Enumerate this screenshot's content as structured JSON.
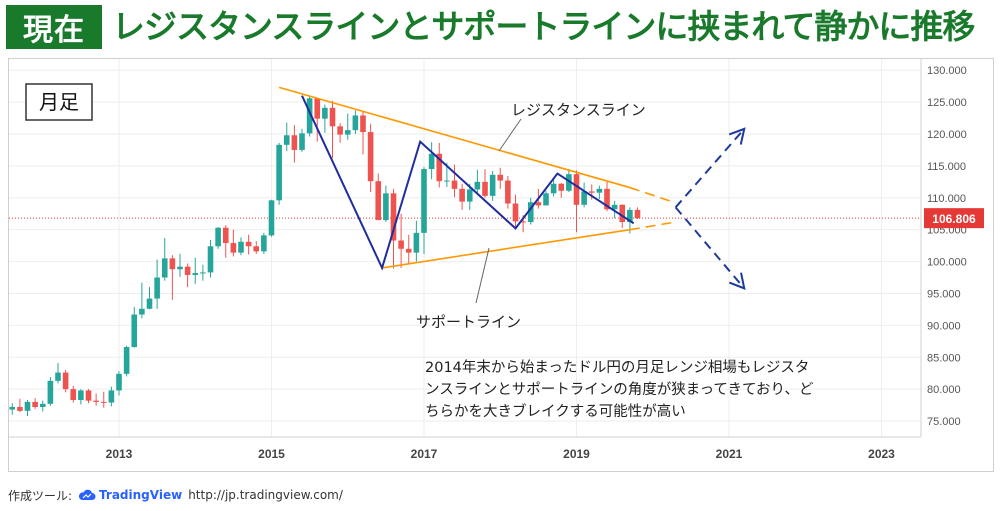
{
  "header": {
    "badge": "現在",
    "headline": "レジスタンスラインとサポートラインに挟まれて静かに推移"
  },
  "footer": {
    "tool_label": "作成ツール:",
    "tv_name": "TradingView",
    "url": "http://jp.tradingview.com/"
  },
  "colors": {
    "header_green": "#1a7a2c",
    "up_candle": "#26a69a",
    "down_candle": "#ef5350",
    "trend_line": "#ff9800",
    "zigzag": "#1f2d9e",
    "arrow": "#1e3a9a",
    "current_price": "#e53935"
  },
  "chart_data": {
    "type": "candlestick",
    "timeframe_label": "月足",
    "x_ticks": [
      "2013",
      "2015",
      "2017",
      "2019",
      "2021",
      "2023"
    ],
    "y_ticks": [
      "75.000",
      "80.000",
      "85.000",
      "90.000",
      "95.000",
      "100.000",
      "105.000",
      "110.000",
      "115.000",
      "120.000",
      "125.000",
      "130.000"
    ],
    "ylim": [
      72.5,
      130.5
    ],
    "current_price": "106.806",
    "annotations": {
      "resistance": "レジスタンスライン",
      "support": "サポートライン",
      "comment_lines": [
        "2014年末から始まったドル円の月足レンジ相場もレジスタ",
        "ンスラインとサポートラインの角度が狭まってきており、ど",
        "ちらかを大きブレイクする可能性が高い"
      ]
    },
    "resistance_line": [
      {
        "t": 2015.1,
        "v": 127.3
      },
      {
        "t": 2019.7,
        "v": 111.6
      }
    ],
    "resistance_projection": [
      {
        "t": 2019.7,
        "v": 111.6
      },
      {
        "t": 2020.3,
        "v": 109.2
      }
    ],
    "support_line": [
      {
        "t": 2016.45,
        "v": 99.0
      },
      {
        "t": 2019.7,
        "v": 105.0
      }
    ],
    "support_projection": [
      {
        "t": 2019.7,
        "v": 105.0
      },
      {
        "t": 2020.3,
        "v": 106.2
      }
    ],
    "zigzag": [
      {
        "t": 2015.4,
        "v": 126.0
      },
      {
        "t": 2016.45,
        "v": 99.0
      },
      {
        "t": 2016.95,
        "v": 118.8
      },
      {
        "t": 2018.2,
        "v": 105.2
      },
      {
        "t": 2018.75,
        "v": 113.8
      },
      {
        "t": 2019.75,
        "v": 106.0
      }
    ],
    "arrows": [
      {
        "from": {
          "t": 2020.3,
          "v": 108.5
        },
        "to": {
          "t": 2021.2,
          "v": 120.8
        }
      },
      {
        "from": {
          "t": 2020.3,
          "v": 108.5
        },
        "to": {
          "t": 2021.2,
          "v": 95.8
        }
      }
    ],
    "candles": [
      {
        "t": 2011.6,
        "o": 76.8,
        "h": 77.8,
        "l": 76.0,
        "c": 77.2
      },
      {
        "t": 2011.7,
        "o": 77.2,
        "h": 78.5,
        "l": 76.4,
        "c": 76.6
      },
      {
        "t": 2011.8,
        "o": 76.6,
        "h": 78.3,
        "l": 75.8,
        "c": 78.0
      },
      {
        "t": 2011.9,
        "o": 78.0,
        "h": 78.6,
        "l": 76.9,
        "c": 77.2
      },
      {
        "t": 2012.0,
        "o": 77.2,
        "h": 78.2,
        "l": 76.5,
        "c": 77.7
      },
      {
        "t": 2012.1,
        "o": 77.7,
        "h": 81.9,
        "l": 77.4,
        "c": 81.3
      },
      {
        "t": 2012.2,
        "o": 81.3,
        "h": 84.1,
        "l": 80.9,
        "c": 82.6
      },
      {
        "t": 2012.3,
        "o": 82.6,
        "h": 83.0,
        "l": 79.5,
        "c": 80.0
      },
      {
        "t": 2012.4,
        "o": 80.0,
        "h": 80.5,
        "l": 77.9,
        "c": 78.3
      },
      {
        "t": 2012.5,
        "o": 78.3,
        "h": 80.0,
        "l": 77.6,
        "c": 79.8
      },
      {
        "t": 2012.6,
        "o": 79.8,
        "h": 80.0,
        "l": 77.8,
        "c": 78.2
      },
      {
        "t": 2012.7,
        "o": 78.2,
        "h": 79.3,
        "l": 77.4,
        "c": 78.0
      },
      {
        "t": 2012.8,
        "o": 78.0,
        "h": 79.6,
        "l": 77.1,
        "c": 77.9
      },
      {
        "t": 2012.9,
        "o": 77.9,
        "h": 80.4,
        "l": 77.3,
        "c": 79.8
      },
      {
        "t": 2013.0,
        "o": 79.8,
        "h": 82.8,
        "l": 79.0,
        "c": 82.4
      },
      {
        "t": 2013.1,
        "o": 82.4,
        "h": 86.8,
        "l": 82.0,
        "c": 86.6
      },
      {
        "t": 2013.2,
        "o": 86.6,
        "h": 92.9,
        "l": 86.5,
        "c": 91.7
      },
      {
        "t": 2013.3,
        "o": 91.7,
        "h": 96.7,
        "l": 91.1,
        "c": 92.6
      },
      {
        "t": 2013.4,
        "o": 92.6,
        "h": 96.0,
        "l": 92.5,
        "c": 94.2
      },
      {
        "t": 2013.5,
        "o": 94.2,
        "h": 100.3,
        "l": 92.6,
        "c": 97.5
      },
      {
        "t": 2013.6,
        "o": 97.5,
        "h": 103.7,
        "l": 97.0,
        "c": 100.5
      },
      {
        "t": 2013.7,
        "o": 100.5,
        "h": 101.0,
        "l": 94.0,
        "c": 98.8
      },
      {
        "t": 2013.8,
        "o": 98.8,
        "h": 101.2,
        "l": 97.6,
        "c": 99.2
      },
      {
        "t": 2013.9,
        "o": 99.2,
        "h": 99.7,
        "l": 96.0,
        "c": 97.9
      },
      {
        "t": 2014.0,
        "o": 97.9,
        "h": 100.6,
        "l": 96.5,
        "c": 98.2
      },
      {
        "t": 2014.1,
        "o": 98.2,
        "h": 99.5,
        "l": 97.0,
        "c": 98.3
      },
      {
        "t": 2014.2,
        "o": 98.3,
        "h": 103.4,
        "l": 97.5,
        "c": 102.4
      },
      {
        "t": 2014.3,
        "o": 102.4,
        "h": 105.4,
        "l": 102.0,
        "c": 105.3
      },
      {
        "t": 2014.4,
        "o": 105.3,
        "h": 105.7,
        "l": 100.6,
        "c": 102.9
      },
      {
        "t": 2014.5,
        "o": 102.9,
        "h": 105.0,
        "l": 100.8,
        "c": 101.4
      },
      {
        "t": 2014.6,
        "o": 101.4,
        "h": 103.8,
        "l": 101.0,
        "c": 103.1
      },
      {
        "t": 2014.7,
        "o": 103.1,
        "h": 104.2,
        "l": 101.1,
        "c": 102.4
      },
      {
        "t": 2014.8,
        "o": 102.4,
        "h": 103.2,
        "l": 101.2,
        "c": 101.6
      },
      {
        "t": 2014.9,
        "o": 101.6,
        "h": 104.5,
        "l": 101.2,
        "c": 104.1
      },
      {
        "t": 2015.0,
        "o": 104.1,
        "h": 109.7,
        "l": 103.9,
        "c": 109.6
      },
      {
        "t": 2015.1,
        "o": 109.6,
        "h": 118.6,
        "l": 108.9,
        "c": 118.3
      },
      {
        "t": 2015.2,
        "o": 118.3,
        "h": 121.8,
        "l": 117.3,
        "c": 119.8
      },
      {
        "t": 2015.3,
        "o": 119.8,
        "h": 121.4,
        "l": 115.5,
        "c": 117.5
      },
      {
        "t": 2015.4,
        "o": 117.5,
        "h": 120.8,
        "l": 117.2,
        "c": 120.1
      },
      {
        "t": 2015.5,
        "o": 120.1,
        "h": 125.9,
        "l": 119.6,
        "c": 125.6
      },
      {
        "t": 2015.6,
        "o": 125.6,
        "h": 125.7,
        "l": 118.8,
        "c": 122.4
      },
      {
        "t": 2015.7,
        "o": 122.4,
        "h": 124.6,
        "l": 120.2,
        "c": 124.1
      },
      {
        "t": 2015.8,
        "o": 124.1,
        "h": 125.2,
        "l": 116.2,
        "c": 121.2
      },
      {
        "t": 2015.9,
        "o": 121.2,
        "h": 121.7,
        "l": 118.6,
        "c": 119.9
      },
      {
        "t": 2016.0,
        "o": 119.9,
        "h": 123.2,
        "l": 119.1,
        "c": 120.6
      },
      {
        "t": 2016.1,
        "o": 120.6,
        "h": 123.7,
        "l": 120.0,
        "c": 122.9
      },
      {
        "t": 2016.2,
        "o": 122.9,
        "h": 123.5,
        "l": 116.8,
        "c": 120.3
      },
      {
        "t": 2016.3,
        "o": 120.3,
        "h": 121.6,
        "l": 110.9,
        "c": 112.6
      },
      {
        "t": 2016.4,
        "o": 112.6,
        "h": 113.8,
        "l": 106.7,
        "c": 106.5
      },
      {
        "t": 2016.5,
        "o": 106.5,
        "h": 111.9,
        "l": 106.2,
        "c": 110.7
      },
      {
        "t": 2016.6,
        "o": 110.7,
        "h": 111.4,
        "l": 98.9,
        "c": 103.3
      },
      {
        "t": 2016.7,
        "o": 103.3,
        "h": 107.5,
        "l": 99.0,
        "c": 102.0
      },
      {
        "t": 2016.8,
        "o": 102.0,
        "h": 104.2,
        "l": 99.6,
        "c": 101.4
      },
      {
        "t": 2016.9,
        "o": 101.4,
        "h": 106.4,
        "l": 100.0,
        "c": 104.5
      },
      {
        "t": 2017.0,
        "o": 104.5,
        "h": 114.8,
        "l": 101.2,
        "c": 114.5
      },
      {
        "t": 2017.1,
        "o": 114.5,
        "h": 118.7,
        "l": 112.9,
        "c": 116.9
      },
      {
        "t": 2017.2,
        "o": 116.9,
        "h": 118.6,
        "l": 111.6,
        "c": 112.6
      },
      {
        "t": 2017.3,
        "o": 112.6,
        "h": 115.5,
        "l": 111.7,
        "c": 112.7
      },
      {
        "t": 2017.4,
        "o": 112.7,
        "h": 115.2,
        "l": 110.1,
        "c": 111.4
      },
      {
        "t": 2017.5,
        "o": 111.4,
        "h": 112.2,
        "l": 108.1,
        "c": 109.4
      },
      {
        "t": 2017.6,
        "o": 109.4,
        "h": 112.2,
        "l": 108.1,
        "c": 111.3
      },
      {
        "t": 2017.7,
        "o": 111.3,
        "h": 114.4,
        "l": 110.6,
        "c": 112.5
      },
      {
        "t": 2017.8,
        "o": 112.5,
        "h": 114.5,
        "l": 110.0,
        "c": 110.3
      },
      {
        "t": 2017.9,
        "o": 110.3,
        "h": 114.2,
        "l": 109.5,
        "c": 113.6
      },
      {
        "t": 2018.0,
        "o": 113.6,
        "h": 114.7,
        "l": 111.4,
        "c": 112.7
      },
      {
        "t": 2018.1,
        "o": 112.7,
        "h": 113.4,
        "l": 108.3,
        "c": 109.1
      },
      {
        "t": 2018.2,
        "o": 109.1,
        "h": 110.5,
        "l": 105.5,
        "c": 106.3
      },
      {
        "t": 2018.3,
        "o": 106.3,
        "h": 107.3,
        "l": 104.6,
        "c": 106.2
      },
      {
        "t": 2018.4,
        "o": 106.2,
        "h": 110.0,
        "l": 105.8,
        "c": 109.3
      },
      {
        "t": 2018.5,
        "o": 109.3,
        "h": 111.4,
        "l": 108.3,
        "c": 108.8
      },
      {
        "t": 2018.6,
        "o": 108.8,
        "h": 111.1,
        "l": 108.9,
        "c": 110.7
      },
      {
        "t": 2018.7,
        "o": 110.7,
        "h": 113.2,
        "l": 110.2,
        "c": 112.2
      },
      {
        "t": 2018.8,
        "o": 112.2,
        "h": 112.3,
        "l": 110.0,
        "c": 111.1
      },
      {
        "t": 2018.9,
        "o": 111.1,
        "h": 114.5,
        "l": 110.9,
        "c": 113.7
      },
      {
        "t": 2019.0,
        "o": 113.7,
        "h": 114.3,
        "l": 104.6,
        "c": 108.9
      },
      {
        "t": 2019.1,
        "o": 108.9,
        "h": 112.4,
        "l": 108.5,
        "c": 111.0
      },
      {
        "t": 2019.2,
        "o": 111.0,
        "h": 112.1,
        "l": 109.7,
        "c": 110.8
      },
      {
        "t": 2019.3,
        "o": 110.8,
        "h": 111.9,
        "l": 109.8,
        "c": 111.4
      },
      {
        "t": 2019.4,
        "o": 111.4,
        "h": 112.5,
        "l": 107.9,
        "c": 108.2
      },
      {
        "t": 2019.5,
        "o": 108.2,
        "h": 109.5,
        "l": 106.8,
        "c": 108.9
      },
      {
        "t": 2019.6,
        "o": 108.9,
        "h": 109.0,
        "l": 105.3,
        "c": 106.2
      },
      {
        "t": 2019.7,
        "o": 106.2,
        "h": 108.5,
        "l": 104.4,
        "c": 108.1
      },
      {
        "t": 2019.8,
        "o": 108.1,
        "h": 108.5,
        "l": 106.7,
        "c": 106.8
      }
    ]
  }
}
